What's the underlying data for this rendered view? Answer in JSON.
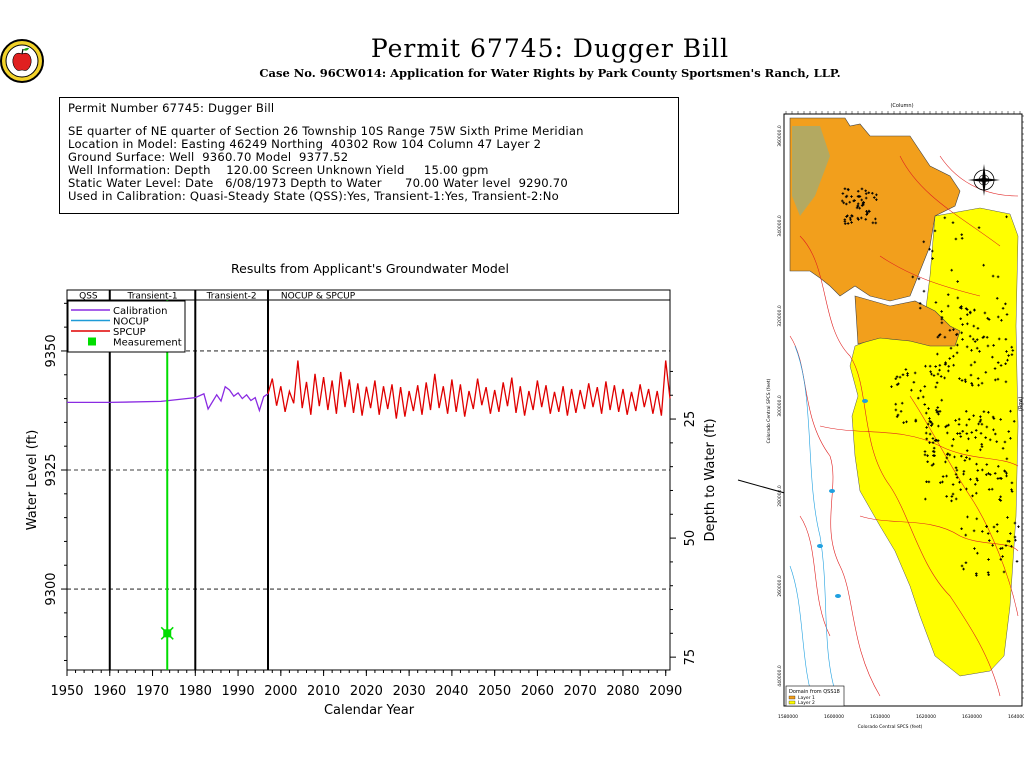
{
  "header": {
    "title": "Permit 67745:  Dugger Bill",
    "subtitle": "Case No. 96CW014: Application for Water Rights by Park County Sportsmen's Ranch, LLP."
  },
  "info": {
    "lines": [
      "Permit Number 67745: Dugger Bill",
      "SE quarter of NE quarter of Section 26 Township 10S Range 75W Sixth Prime Meridian",
      "Location in Model: Easting 46249 Northing  40302 Row 104 Column 47 Layer 2",
      "Ground Surface: Well  9360.70 Model  9377.52",
      "Well Information: Depth    120.00 Screen Unknown Yield     15.00 gpm",
      "Static Water Level: Date   6/08/1973 Depth to Water      70.00 Water level  9290.70",
      "Used in Calibration: Quasi-Steady State (QSS):Yes, Transient-1:Yes, Transient-2:No"
    ]
  },
  "chart_data": {
    "type": "line",
    "title": "Results from Applicant's Groundwater Model",
    "xlabel": "Calendar Year",
    "ylabel": "Water Level (ft)",
    "y2label": "Depth to Water (ft)",
    "xlim": [
      1950,
      2091
    ],
    "ylim": [
      9283,
      9360.7
    ],
    "xticks": [
      1950,
      1960,
      1970,
      1980,
      1990,
      2000,
      2010,
      2020,
      2030,
      2040,
      2050,
      2060,
      2070,
      2080,
      2090
    ],
    "yticks": [
      9300,
      9325,
      9350
    ],
    "y2ticks": [
      25,
      50,
      75
    ],
    "ground_surface": 9360.7,
    "grid": "dashed at major y ticks",
    "periods": [
      {
        "label": "QSS",
        "start": 1950,
        "end": 1960
      },
      {
        "label": "Transient-1",
        "start": 1960,
        "end": 1980
      },
      {
        "label": "Transient-2",
        "start": 1980,
        "end": 1997
      },
      {
        "label": "NOCUP  &  SPCUP",
        "start": 1997,
        "end": 2091
      }
    ],
    "legend_position": "top-left",
    "series": [
      {
        "name": "Calibration",
        "color": "#8a2be2",
        "points": [
          [
            1950,
            9339.2
          ],
          [
            1960,
            9339.2
          ],
          [
            1972,
            9339.4
          ],
          [
            1980,
            9340.2
          ],
          [
            1982,
            9341.0
          ],
          [
            1983,
            9337.8
          ],
          [
            1985,
            9340.8
          ],
          [
            1986,
            9339.5
          ],
          [
            1987,
            9342.5
          ],
          [
            1988,
            9341.8
          ],
          [
            1989,
            9340.5
          ],
          [
            1990,
            9341.2
          ],
          [
            1991,
            9340.0
          ],
          [
            1992,
            9340.8
          ],
          [
            1993,
            9339.6
          ],
          [
            1994,
            9340.2
          ],
          [
            1995,
            9337.5
          ],
          [
            1996,
            9340.4
          ],
          [
            1997,
            9341.0
          ]
        ]
      },
      {
        "name": "NOCUP",
        "color": "#1f9bd7",
        "points": []
      },
      {
        "name": "SPCUP",
        "color": "#e00000",
        "points": [
          [
            1997,
            9341.0
          ],
          [
            1998,
            9344.2
          ],
          [
            1999,
            9338.5
          ],
          [
            2000,
            9342.6
          ],
          [
            2001,
            9337.2
          ],
          [
            2002,
            9341.5
          ],
          [
            2003,
            9339.0
          ],
          [
            2004,
            9348.0
          ],
          [
            2005,
            9338.0
          ],
          [
            2006,
            9343.5
          ],
          [
            2007,
            9336.6
          ],
          [
            2008,
            9345.2
          ],
          [
            2009,
            9338.4
          ],
          [
            2010,
            9344.5
          ],
          [
            2011,
            9337.6
          ],
          [
            2012,
            9343.8
          ],
          [
            2013,
            9336.8
          ],
          [
            2014,
            9345.6
          ],
          [
            2015,
            9338.2
          ],
          [
            2016,
            9344.0
          ],
          [
            2017,
            9337.0
          ],
          [
            2018,
            9343.2
          ],
          [
            2019,
            9336.4
          ],
          [
            2020,
            9342.5
          ],
          [
            2021,
            9338.0
          ],
          [
            2022,
            9343.8
          ],
          [
            2023,
            9336.6
          ],
          [
            2024,
            9342.6
          ],
          [
            2025,
            9337.8
          ],
          [
            2026,
            9343.0
          ],
          [
            2027,
            9335.8
          ],
          [
            2028,
            9342.4
          ],
          [
            2029,
            9336.2
          ],
          [
            2030,
            9341.6
          ],
          [
            2031,
            9337.4
          ],
          [
            2032,
            9342.8
          ],
          [
            2033,
            9336.6
          ],
          [
            2034,
            9343.4
          ],
          [
            2035,
            9337.6
          ],
          [
            2036,
            9345.2
          ],
          [
            2037,
            9338.0
          ],
          [
            2038,
            9342.6
          ],
          [
            2039,
            9336.8
          ],
          [
            2040,
            9344.0
          ],
          [
            2041,
            9337.2
          ],
          [
            2042,
            9343.0
          ],
          [
            2043,
            9336.2
          ],
          [
            2044,
            9341.6
          ],
          [
            2045,
            9337.8
          ],
          [
            2046,
            9344.2
          ],
          [
            2047,
            9338.6
          ],
          [
            2048,
            9342.4
          ],
          [
            2049,
            9336.8
          ],
          [
            2050,
            9341.8
          ],
          [
            2051,
            9337.2
          ],
          [
            2052,
            9343.4
          ],
          [
            2053,
            9338.4
          ],
          [
            2054,
            9344.4
          ],
          [
            2055,
            9337.0
          ],
          [
            2056,
            9342.6
          ],
          [
            2057,
            9336.4
          ],
          [
            2058,
            9341.6
          ],
          [
            2059,
            9337.6
          ],
          [
            2060,
            9343.8
          ],
          [
            2061,
            9338.2
          ],
          [
            2062,
            9342.8
          ],
          [
            2063,
            9336.8
          ],
          [
            2064,
            9341.4
          ],
          [
            2065,
            9337.2
          ],
          [
            2066,
            9342.6
          ],
          [
            2067,
            9336.4
          ],
          [
            2068,
            9342.0
          ],
          [
            2069,
            9337.0
          ],
          [
            2070,
            9341.8
          ],
          [
            2071,
            9337.8
          ],
          [
            2072,
            9343.2
          ],
          [
            2073,
            9338.2
          ],
          [
            2074,
            9342.4
          ],
          [
            2075,
            9336.8
          ],
          [
            2076,
            9343.6
          ],
          [
            2077,
            9337.6
          ],
          [
            2078,
            9342.8
          ],
          [
            2079,
            9337.2
          ],
          [
            2080,
            9342.0
          ],
          [
            2081,
            9336.6
          ],
          [
            2082,
            9341.4
          ],
          [
            2083,
            9337.4
          ],
          [
            2084,
            9343.0
          ],
          [
            2085,
            9338.2
          ],
          [
            2086,
            9342.0
          ],
          [
            2087,
            9336.8
          ],
          [
            2088,
            9341.6
          ],
          [
            2089,
            9336.4
          ],
          [
            2090,
            9348.0
          ],
          [
            2091,
            9340.0
          ]
        ]
      },
      {
        "name": "Measurement",
        "color": "#00dd00",
        "marker": "square",
        "points": [
          [
            1973.44,
            9290.7
          ]
        ]
      }
    ]
  },
  "map": {
    "legend_title": "Domain from QSS18",
    "legend_items": [
      "Layer 1",
      "Layer 2"
    ],
    "top_axis_label": "(Column)",
    "left_axis_label": "Colorado Central SPCS (feet)",
    "bottom_axis_label": "Colorado Central SPCS (feet)",
    "right_axis_label": "(Row)",
    "bottom_ticks": [
      "1580000",
      "1600000",
      "1610000",
      "1620000",
      "1630000",
      "1640000"
    ],
    "left_ticks": [
      "360000.0",
      "340000.0",
      "320000.0",
      "300000.0",
      "280000.0",
      "260000.0",
      "440000.0"
    ],
    "colors": {
      "layer1": "#f29f1c",
      "layer2": "#ffff00",
      "stream": "#e02020",
      "lake": "#1fa0e0"
    }
  }
}
